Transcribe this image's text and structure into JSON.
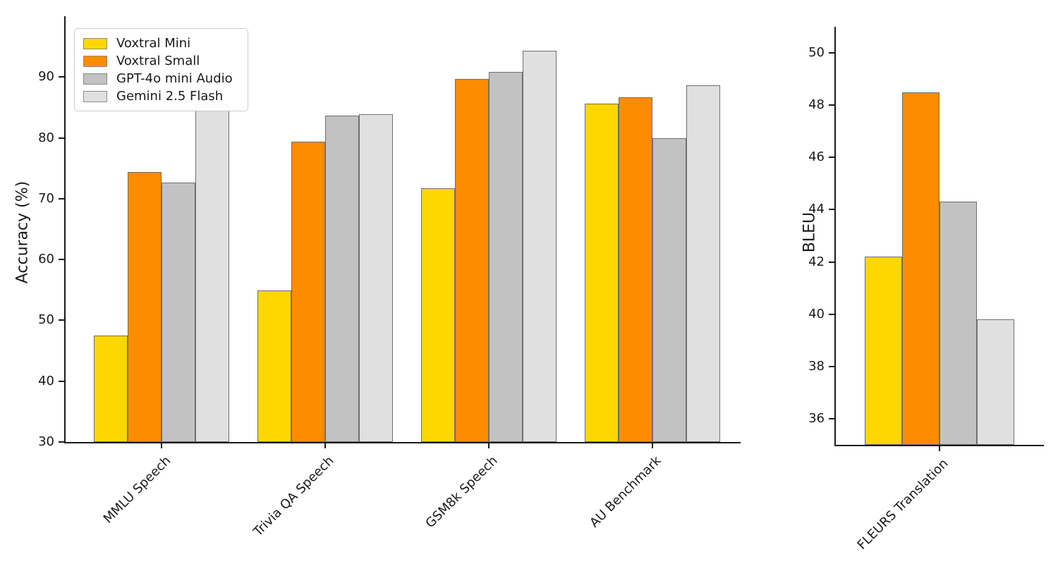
{
  "figure": {
    "background_color": "#ffffff",
    "axis_color": "#1a1a1a"
  },
  "legend": {
    "position": "upper left",
    "items": [
      {
        "label": "Voxtral Mini",
        "color": "#FFD700"
      },
      {
        "label": "Voxtral Small",
        "color": "#FF8C00"
      },
      {
        "label": "GPT-4o mini Audio",
        "color": "#C2C2C2"
      },
      {
        "label": "Gemini 2.5 Flash",
        "color": "#E0E0E0"
      }
    ]
  },
  "chart_data": [
    {
      "type": "bar",
      "title": "",
      "xlabel": "",
      "ylabel": "Accuracy (%)",
      "ylim": [
        30,
        100
      ],
      "yticks": [
        30,
        40,
        50,
        60,
        70,
        80,
        90
      ],
      "grid": false,
      "legend_position": "upper left",
      "categories": [
        "MMLU Speech",
        "Trivia QA Speech",
        "GSM8k Speech",
        "AU Benchmark"
      ],
      "series": [
        {
          "name": "Voxtral Mini",
          "color": "#FFD700",
          "values": [
            47.5,
            54.9,
            71.7,
            85.6
          ]
        },
        {
          "name": "Voxtral Small",
          "color": "#FF8C00",
          "values": [
            74.4,
            79.4,
            89.7,
            86.7
          ]
        },
        {
          "name": "GPT-4o mini Audio",
          "color": "#C2C2C2",
          "values": [
            72.7,
            83.7,
            90.8,
            80.0
          ]
        },
        {
          "name": "Gemini 2.5 Flash",
          "color": "#E0E0E0",
          "values": [
            85.5,
            83.9,
            94.3,
            88.7
          ]
        }
      ]
    },
    {
      "type": "bar",
      "title": "",
      "xlabel": "",
      "ylabel": "BLEU",
      "ylim": [
        35,
        51
      ],
      "yticks": [
        36,
        38,
        40,
        42,
        44,
        46,
        48,
        50
      ],
      "grid": false,
      "legend_position": "none",
      "categories": [
        "FLEURS Translation"
      ],
      "series": [
        {
          "name": "Voxtral Mini",
          "color": "#FFD700",
          "values": [
            42.2
          ]
        },
        {
          "name": "Voxtral Small",
          "color": "#FF8C00",
          "values": [
            48.5
          ]
        },
        {
          "name": "GPT-4o mini Audio",
          "color": "#C2C2C2",
          "values": [
            44.3
          ]
        },
        {
          "name": "Gemini 2.5 Flash",
          "color": "#E0E0E0",
          "values": [
            39.8
          ]
        }
      ]
    }
  ]
}
